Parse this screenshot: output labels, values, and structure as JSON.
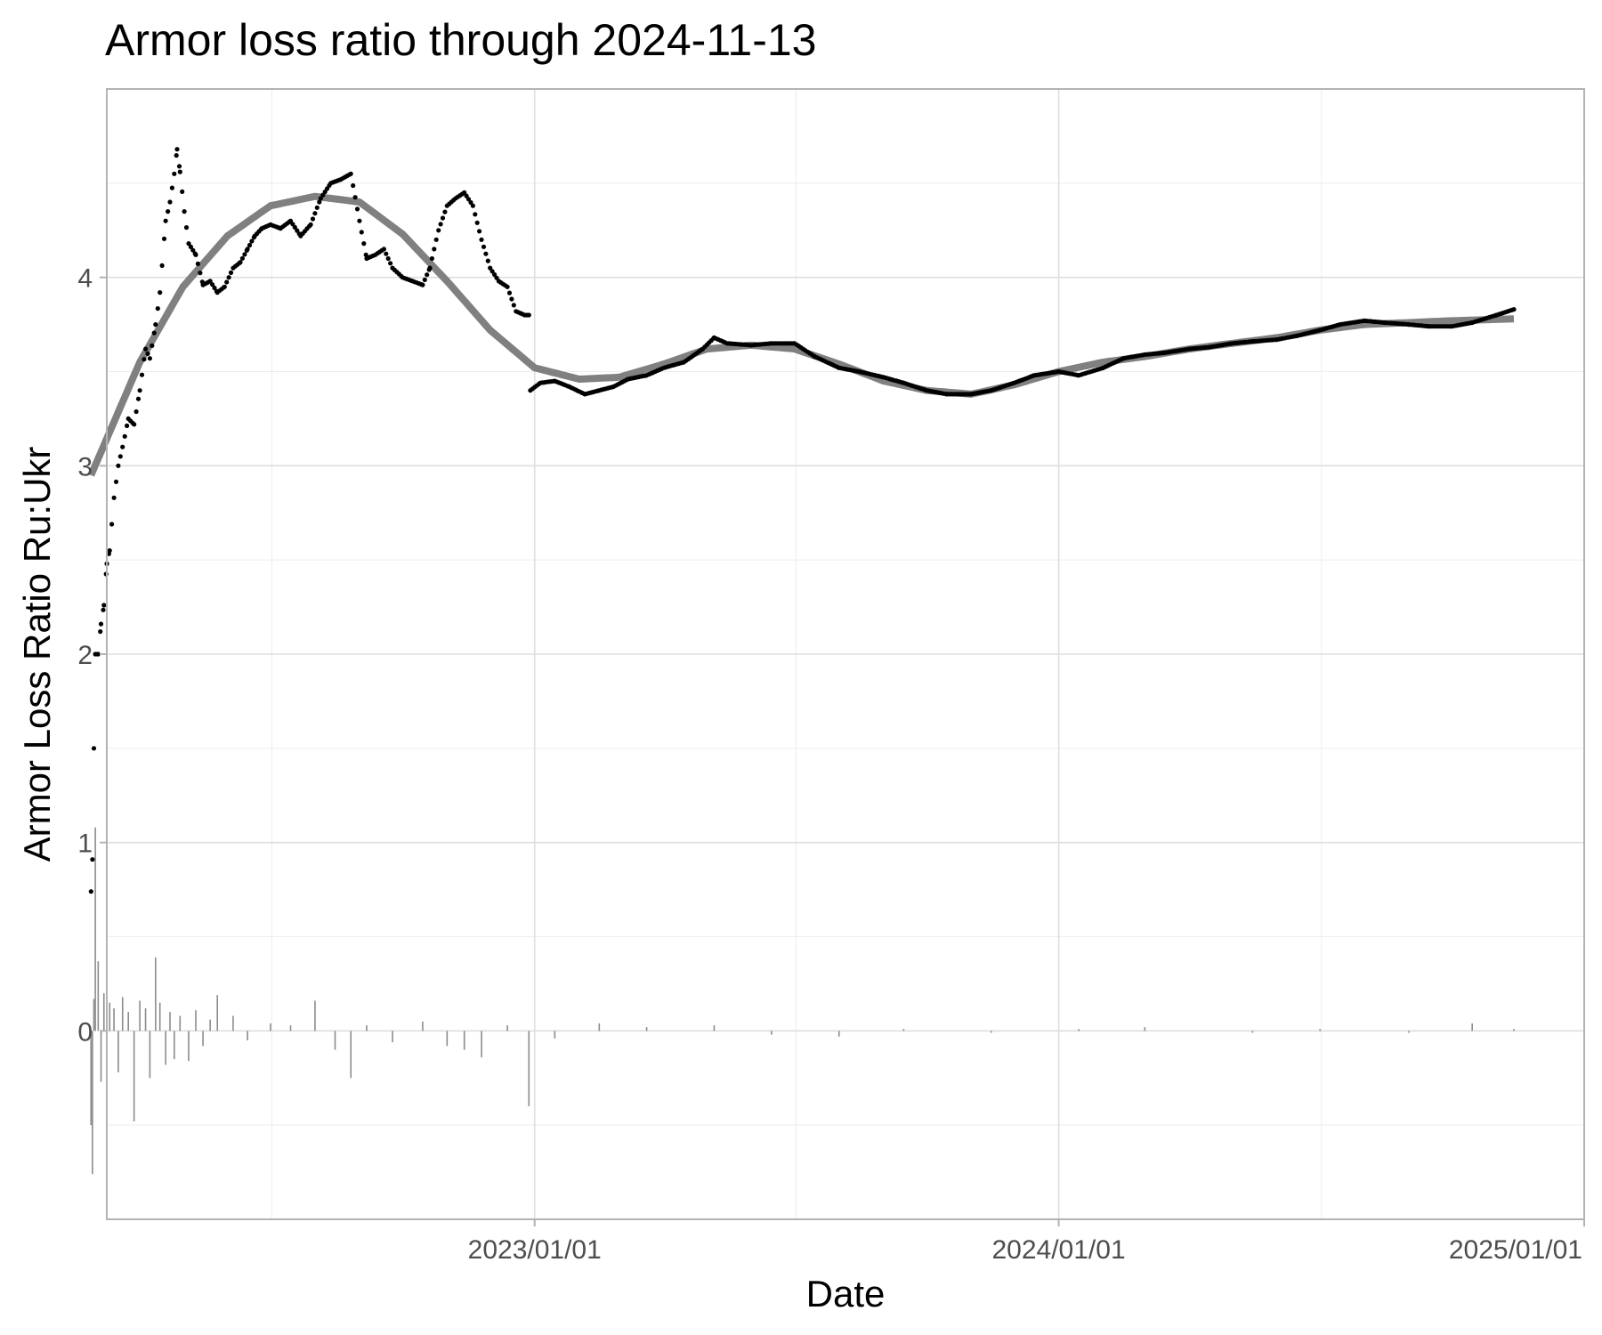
{
  "chart_data": {
    "type": "scatter",
    "title": "Armor loss ratio through 2024-11-13",
    "xlabel": "Date",
    "ylabel": "Armor Loss Ratio Ru:Ukr",
    "xlim": [
      "2022-03-09",
      "2025-01-01"
    ],
    "ylim": [
      -1.0,
      5.0
    ],
    "x_ticks": [
      {
        "date": "2023-01-01",
        "label": "2023/01/01"
      },
      {
        "date": "2024-01-01",
        "label": "2024/01/01"
      },
      {
        "date": "2025-01-01",
        "label": "2025/01/01"
      }
    ],
    "x_minor_ticks": [
      "2022-07-02",
      "2023-07-02",
      "2024-07-02"
    ],
    "y_ticks": [
      0,
      1,
      2,
      3,
      4
    ],
    "grid": true,
    "legend": "none",
    "colors": {
      "points": "#000000",
      "smooth": "#808080",
      "diff": "#8c8c8c"
    },
    "series": [
      {
        "role": "daily ratio points",
        "points": [
          [
            "2022-02-26",
            0.74
          ],
          [
            "2022-02-27",
            0.91
          ],
          [
            "2022-02-28",
            1.5
          ],
          [
            "2022-03-01",
            2.0
          ],
          [
            "2022-03-03",
            2.0
          ],
          [
            "2022-03-05",
            2.16
          ],
          [
            "2022-03-07",
            2.26
          ],
          [
            "2022-03-09",
            2.48
          ],
          [
            "2022-03-11",
            2.55
          ],
          [
            "2022-03-14",
            2.83
          ],
          [
            "2022-03-17",
            3.0
          ],
          [
            "2022-03-20",
            3.1
          ],
          [
            "2022-03-24",
            3.25
          ],
          [
            "2022-03-28",
            3.22
          ],
          [
            "2022-04-01",
            3.4
          ],
          [
            "2022-04-05",
            3.62
          ],
          [
            "2022-04-08",
            3.57
          ],
          [
            "2022-04-12",
            3.75
          ],
          [
            "2022-04-15",
            3.92
          ],
          [
            "2022-04-19",
            4.3
          ],
          [
            "2022-04-22",
            4.4
          ],
          [
            "2022-04-25",
            4.55
          ],
          [
            "2022-04-27",
            4.68
          ],
          [
            "2022-04-29",
            4.56
          ],
          [
            "2022-05-02",
            4.35
          ],
          [
            "2022-05-05",
            4.18
          ],
          [
            "2022-05-10",
            4.12
          ],
          [
            "2022-05-15",
            3.96
          ],
          [
            "2022-05-20",
            3.98
          ],
          [
            "2022-05-25",
            3.92
          ],
          [
            "2022-05-30",
            3.95
          ],
          [
            "2022-06-05",
            4.05
          ],
          [
            "2022-06-10",
            4.08
          ],
          [
            "2022-06-15",
            4.15
          ],
          [
            "2022-06-20",
            4.22
          ],
          [
            "2022-06-25",
            4.26
          ],
          [
            "2022-07-01",
            4.28
          ],
          [
            "2022-07-08",
            4.26
          ],
          [
            "2022-07-15",
            4.3
          ],
          [
            "2022-07-22",
            4.22
          ],
          [
            "2022-07-29",
            4.28
          ],
          [
            "2022-08-05",
            4.42
          ],
          [
            "2022-08-12",
            4.5
          ],
          [
            "2022-08-19",
            4.52
          ],
          [
            "2022-08-26",
            4.55
          ],
          [
            "2022-09-01",
            4.3
          ],
          [
            "2022-09-06",
            4.1
          ],
          [
            "2022-09-12",
            4.12
          ],
          [
            "2022-09-18",
            4.15
          ],
          [
            "2022-09-24",
            4.05
          ],
          [
            "2022-10-01",
            4.0
          ],
          [
            "2022-10-08",
            3.98
          ],
          [
            "2022-10-15",
            3.96
          ],
          [
            "2022-10-20",
            4.05
          ],
          [
            "2022-10-26",
            4.25
          ],
          [
            "2022-11-01",
            4.38
          ],
          [
            "2022-11-07",
            4.42
          ],
          [
            "2022-11-13",
            4.45
          ],
          [
            "2022-11-19",
            4.38
          ],
          [
            "2022-11-25",
            4.2
          ],
          [
            "2022-12-01",
            4.05
          ],
          [
            "2022-12-07",
            3.98
          ],
          [
            "2022-12-13",
            3.95
          ],
          [
            "2022-12-19",
            3.82
          ],
          [
            "2022-12-25",
            3.8
          ],
          [
            "2022-12-28",
            3.8
          ],
          [
            "2022-12-29",
            3.4
          ],
          [
            "2023-01-05",
            3.44
          ],
          [
            "2023-01-15",
            3.45
          ],
          [
            "2023-01-25",
            3.42
          ],
          [
            "2023-02-05",
            3.38
          ],
          [
            "2023-02-15",
            3.4
          ],
          [
            "2023-02-25",
            3.42
          ],
          [
            "2023-03-07",
            3.46
          ],
          [
            "2023-03-20",
            3.48
          ],
          [
            "2023-04-01",
            3.52
          ],
          [
            "2023-04-15",
            3.55
          ],
          [
            "2023-04-28",
            3.62
          ],
          [
            "2023-05-06",
            3.68
          ],
          [
            "2023-05-15",
            3.65
          ],
          [
            "2023-06-01",
            3.64
          ],
          [
            "2023-06-15",
            3.65
          ],
          [
            "2023-07-01",
            3.65
          ],
          [
            "2023-07-15",
            3.58
          ],
          [
            "2023-08-01",
            3.52
          ],
          [
            "2023-08-15",
            3.5
          ],
          [
            "2023-09-01",
            3.47
          ],
          [
            "2023-09-15",
            3.44
          ],
          [
            "2023-10-01",
            3.4
          ],
          [
            "2023-10-15",
            3.38
          ],
          [
            "2023-11-01",
            3.38
          ],
          [
            "2023-11-15",
            3.4
          ],
          [
            "2023-12-01",
            3.44
          ],
          [
            "2023-12-15",
            3.48
          ],
          [
            "2024-01-01",
            3.5
          ],
          [
            "2024-01-15",
            3.48
          ],
          [
            "2024-02-01",
            3.52
          ],
          [
            "2024-02-15",
            3.57
          ],
          [
            "2024-03-01",
            3.59
          ],
          [
            "2024-03-15",
            3.6
          ],
          [
            "2024-04-01",
            3.62
          ],
          [
            "2024-04-15",
            3.63
          ],
          [
            "2024-05-01",
            3.65
          ],
          [
            "2024-05-15",
            3.66
          ],
          [
            "2024-06-01",
            3.67
          ],
          [
            "2024-06-15",
            3.69
          ],
          [
            "2024-07-01",
            3.72
          ],
          [
            "2024-07-15",
            3.75
          ],
          [
            "2024-08-01",
            3.77
          ],
          [
            "2024-08-15",
            3.76
          ],
          [
            "2024-09-01",
            3.75
          ],
          [
            "2024-09-15",
            3.74
          ],
          [
            "2024-10-01",
            3.74
          ],
          [
            "2024-10-15",
            3.76
          ],
          [
            "2024-11-01",
            3.8
          ],
          [
            "2024-11-13",
            3.83
          ]
        ]
      },
      {
        "role": "smoothed trend",
        "points": [
          [
            "2022-02-26",
            2.95
          ],
          [
            "2022-04-01",
            3.55
          ],
          [
            "2022-05-01",
            3.95
          ],
          [
            "2022-06-01",
            4.22
          ],
          [
            "2022-07-01",
            4.38
          ],
          [
            "2022-08-01",
            4.43
          ],
          [
            "2022-09-01",
            4.4
          ],
          [
            "2022-10-01",
            4.23
          ],
          [
            "2022-11-01",
            3.98
          ],
          [
            "2022-12-01",
            3.72
          ],
          [
            "2023-01-01",
            3.52
          ],
          [
            "2023-02-01",
            3.46
          ],
          [
            "2023-03-01",
            3.47
          ],
          [
            "2023-04-01",
            3.54
          ],
          [
            "2023-05-01",
            3.62
          ],
          [
            "2023-06-01",
            3.64
          ],
          [
            "2023-07-01",
            3.62
          ],
          [
            "2023-08-01",
            3.54
          ],
          [
            "2023-09-01",
            3.45
          ],
          [
            "2023-10-01",
            3.4
          ],
          [
            "2023-11-01",
            3.38
          ],
          [
            "2023-12-01",
            3.43
          ],
          [
            "2024-01-01",
            3.5
          ],
          [
            "2024-02-01",
            3.55
          ],
          [
            "2024-03-01",
            3.58
          ],
          [
            "2024-04-01",
            3.62
          ],
          [
            "2024-05-01",
            3.65
          ],
          [
            "2024-06-01",
            3.68
          ],
          [
            "2024-07-01",
            3.72
          ],
          [
            "2024-08-01",
            3.75
          ],
          [
            "2024-09-01",
            3.76
          ],
          [
            "2024-10-01",
            3.77
          ],
          [
            "2024-11-13",
            3.78
          ]
        ]
      },
      {
        "role": "daily change",
        "points": [
          [
            "2022-02-26",
            -0.5
          ],
          [
            "2022-02-27",
            -0.76
          ],
          [
            "2022-02-28",
            0.17
          ],
          [
            "2022-03-01",
            1.08
          ],
          [
            "2022-03-03",
            0.37
          ],
          [
            "2022-03-05",
            -0.27
          ],
          [
            "2022-03-07",
            0.2
          ],
          [
            "2022-03-09",
            0.27
          ],
          [
            "2022-03-11",
            0.15
          ],
          [
            "2022-03-14",
            0.12
          ],
          [
            "2022-03-17",
            -0.22
          ],
          [
            "2022-03-20",
            0.18
          ],
          [
            "2022-03-24",
            0.1
          ],
          [
            "2022-03-28",
            -0.48
          ],
          [
            "2022-04-01",
            0.16
          ],
          [
            "2022-04-05",
            0.12
          ],
          [
            "2022-04-08",
            -0.25
          ],
          [
            "2022-04-12",
            0.39
          ],
          [
            "2022-04-15",
            0.15
          ],
          [
            "2022-04-19",
            -0.18
          ],
          [
            "2022-04-22",
            0.1
          ],
          [
            "2022-04-25",
            -0.15
          ],
          [
            "2022-04-29",
            0.08
          ],
          [
            "2022-05-05",
            -0.16
          ],
          [
            "2022-05-10",
            0.11
          ],
          [
            "2022-05-15",
            -0.08
          ],
          [
            "2022-05-20",
            0.06
          ],
          [
            "2022-05-25",
            0.19
          ],
          [
            "2022-06-05",
            0.08
          ],
          [
            "2022-06-15",
            -0.05
          ],
          [
            "2022-07-01",
            0.04
          ],
          [
            "2022-07-15",
            0.03
          ],
          [
            "2022-08-01",
            0.16
          ],
          [
            "2022-08-15",
            -0.1
          ],
          [
            "2022-08-26",
            -0.25
          ],
          [
            "2022-09-06",
            0.03
          ],
          [
            "2022-09-24",
            -0.06
          ],
          [
            "2022-10-15",
            0.05
          ],
          [
            "2022-11-01",
            -0.08
          ],
          [
            "2022-11-13",
            -0.1
          ],
          [
            "2022-11-25",
            -0.14
          ],
          [
            "2022-12-13",
            0.03
          ],
          [
            "2022-12-28",
            -0.4
          ],
          [
            "2023-01-15",
            -0.04
          ],
          [
            "2023-02-15",
            0.04
          ],
          [
            "2023-03-20",
            0.02
          ],
          [
            "2023-05-06",
            0.03
          ],
          [
            "2023-06-15",
            -0.02
          ],
          [
            "2023-08-01",
            -0.03
          ],
          [
            "2023-09-15",
            0.01
          ],
          [
            "2023-11-15",
            -0.01
          ],
          [
            "2024-01-15",
            0.01
          ],
          [
            "2024-03-01",
            0.02
          ],
          [
            "2024-05-15",
            -0.01
          ],
          [
            "2024-07-01",
            0.01
          ],
          [
            "2024-09-01",
            -0.01
          ],
          [
            "2024-10-15",
            0.04
          ],
          [
            "2024-11-13",
            0.01
          ]
        ]
      }
    ]
  }
}
